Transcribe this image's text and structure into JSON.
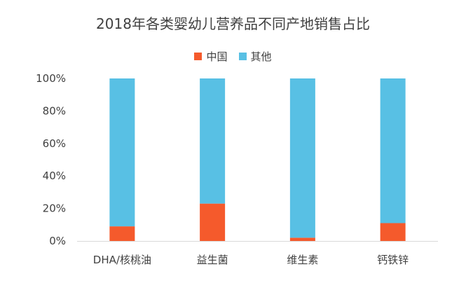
{
  "chart_data": {
    "type": "bar",
    "stacked": true,
    "title": "2018年各类婴幼儿营养品不同产地销售占比",
    "categories": [
      "DHA/核桃油",
      "益生菌",
      "维生素",
      "钙铁锌"
    ],
    "series": [
      {
        "name": "中国",
        "color": "#f55a2c",
        "values": [
          9,
          23,
          2,
          11
        ]
      },
      {
        "name": "其他",
        "color": "#58c0e4",
        "values": [
          91,
          77,
          98,
          89
        ]
      }
    ],
    "ylim": [
      0,
      100
    ],
    "yticks": [
      "0%",
      "20%",
      "40%",
      "60%",
      "80%",
      "100%"
    ],
    "ytick_values": [
      0,
      20,
      40,
      60,
      80,
      100
    ],
    "legend_position": "top",
    "grid": false
  }
}
